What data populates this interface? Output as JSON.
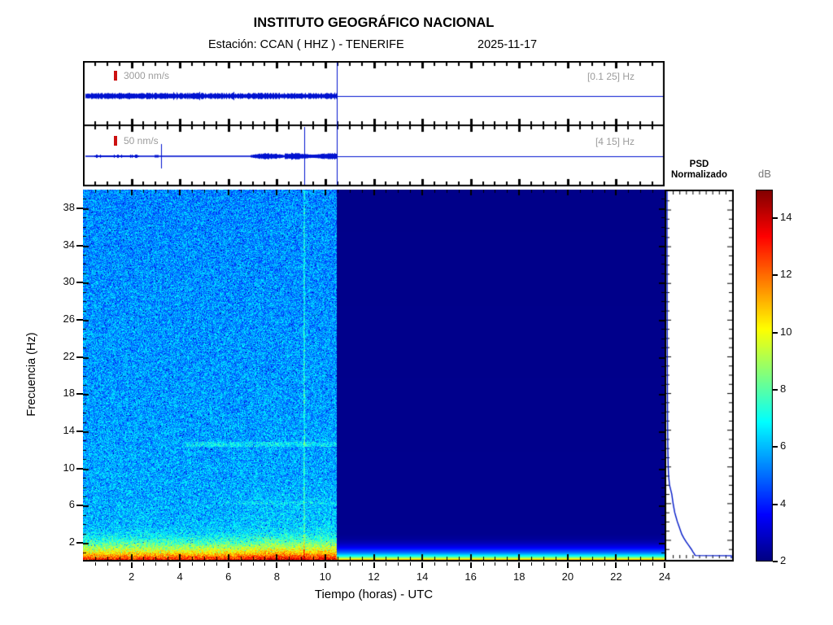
{
  "header": {
    "title": "INSTITUTO GEOGRÁFICO NACIONAL",
    "station_line": "Estación:  CCAN ( HHZ ) - TENERIFE",
    "date": "2025-11-17"
  },
  "wave_panels": [
    {
      "scale_label": "3000 nm/s",
      "band_label": "[0.1 25] Hz"
    },
    {
      "scale_label": "50 nm/s",
      "band_label": "[4 15] Hz"
    }
  ],
  "psd_panel": {
    "title_line1": "PSD",
    "title_line2": "Normalizado"
  },
  "colorbar": {
    "label": "dB"
  },
  "axes": {
    "xlabel": "Tiempo (horas) - UTC",
    "ylabel": "Frecuencia (Hz)"
  },
  "colors": {
    "trace_blue": "#0012d0",
    "curve_blue": "#0018c8",
    "marker_red": "#cc1111",
    "gray_label": "#9c9c9c"
  },
  "chart_data": {
    "type": "heatmap",
    "subtype": "seismic-spectrogram",
    "title": "INSTITUTO GEOGRÁFICO NACIONAL",
    "x": {
      "label": "Tiempo (horas) - UTC",
      "min": 0,
      "max": 24,
      "major_ticks": [
        2,
        4,
        6,
        8,
        10,
        12,
        14,
        16,
        18,
        20,
        22,
        24
      ],
      "minor_step": 0.5
    },
    "y": {
      "label": "Frecuencia (Hz)",
      "min": 0,
      "max": 40,
      "major_ticks": [
        2,
        6,
        10,
        14,
        18,
        22,
        26,
        30,
        34,
        38
      ],
      "minor_step": 1
    },
    "colorbar": {
      "label": "dB",
      "min": 2,
      "max": 15,
      "ticks": [
        2,
        4,
        6,
        8,
        10,
        12,
        14
      ]
    },
    "data_end_hour": 10.48,
    "noise_db": 1.3,
    "left_psd_profile_hz_db": [
      [
        0,
        14.0
      ],
      [
        0.3,
        12.8
      ],
      [
        0.6,
        11.6
      ],
      [
        0.9,
        10.6
      ],
      [
        1.2,
        9.7
      ],
      [
        1.5,
        8.9
      ],
      [
        1.9,
        8.1
      ],
      [
        2.3,
        7.4
      ],
      [
        2.7,
        6.8
      ],
      [
        3.2,
        6.3
      ],
      [
        4,
        6.0
      ],
      [
        6,
        5.9
      ],
      [
        9,
        5.8
      ],
      [
        14,
        5.7
      ],
      [
        20,
        5.6
      ],
      [
        30,
        5.5
      ],
      [
        40,
        5.4
      ]
    ],
    "right_psd_profile_hz_db": [
      [
        0,
        13.2
      ],
      [
        0.1,
        12.2
      ],
      [
        0.2,
        11.0
      ],
      [
        0.3,
        9.8
      ],
      [
        0.45,
        8.2
      ],
      [
        0.6,
        7.0
      ],
      [
        0.8,
        5.8
      ],
      [
        1.0,
        4.9
      ],
      [
        1.3,
        4.0
      ],
      [
        1.6,
        3.3
      ],
      [
        2.0,
        2.7
      ],
      [
        2.4,
        2.35
      ],
      [
        3.0,
        2.18
      ],
      [
        40,
        2.12
      ]
    ],
    "events": {
      "event_line_hour": 9.13,
      "tremor_bands_hz": [
        [
          12.35,
          12.85
        ],
        [
          6.1,
          6.45
        ]
      ]
    },
    "waveforms": [
      {
        "scale_label": "3000 nm/s",
        "band_hz": [
          0.1,
          25
        ],
        "relative_amp": 1.0
      },
      {
        "scale_label": "50 nm/s",
        "band_hz": [
          4,
          15
        ],
        "relative_amp": 0.45,
        "spike_hours": [
          3.22,
          9.13
        ],
        "burst_hours": [
          [
            6.9,
            10.48
          ]
        ]
      }
    ],
    "psd_curve_freq_power": [
      [
        40,
        0.012
      ],
      [
        34,
        0.012
      ],
      [
        28,
        0.014
      ],
      [
        22,
        0.016
      ],
      [
        18,
        0.018
      ],
      [
        15,
        0.02
      ],
      [
        12,
        0.024
      ],
      [
        10,
        0.03
      ],
      [
        9,
        0.036
      ],
      [
        8,
        0.05
      ],
      [
        7,
        0.085
      ],
      [
        6,
        0.105
      ],
      [
        5,
        0.13
      ],
      [
        4.5,
        0.15
      ],
      [
        4,
        0.17
      ],
      [
        3.5,
        0.195
      ],
      [
        3,
        0.22
      ],
      [
        2.6,
        0.24
      ],
      [
        2.2,
        0.27
      ],
      [
        1.8,
        0.305
      ],
      [
        1.4,
        0.345
      ],
      [
        1.0,
        0.385
      ],
      [
        0.7,
        0.41
      ],
      [
        0.5,
        0.43
      ],
      [
        0.35,
        0.44
      ],
      [
        0.3,
        0.45
      ],
      [
        0.28,
        1.0
      ],
      [
        0,
        1.0
      ]
    ]
  }
}
